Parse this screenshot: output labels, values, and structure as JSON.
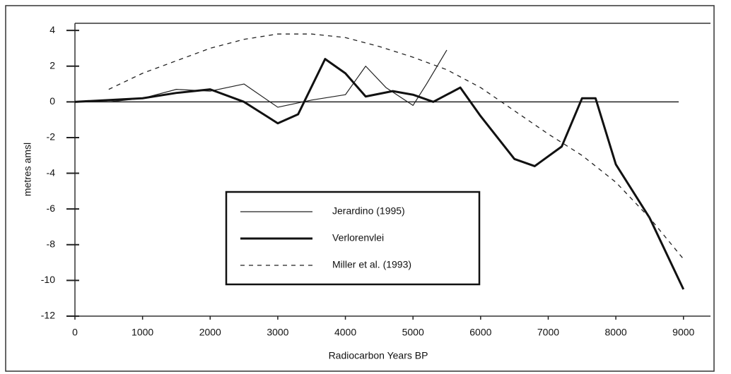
{
  "chart_data": {
    "type": "line",
    "x_label": "Radiocarbon Years BP",
    "y_label": "metres amsl",
    "xlim": [
      0,
      9400
    ],
    "xticks": [
      0,
      1000,
      2000,
      3000,
      4000,
      5000,
      6000,
      7000,
      8000,
      9000
    ],
    "ylim": [
      -12,
      4.4
    ],
    "yticks": [
      -12,
      -10,
      -8,
      -6,
      -4,
      -2,
      0,
      2,
      4
    ],
    "grid": false,
    "series": [
      {
        "name": "Jerardino (1995)",
        "color": "#222222",
        "style": "thin",
        "x": [
          500,
          1000,
          1500,
          2000,
          2500,
          3000,
          3500,
          4000,
          4300,
          4600,
          5000,
          5200,
          5500
        ],
        "values": [
          0,
          0.2,
          0.7,
          0.6,
          1.0,
          -0.3,
          0.1,
          0.4,
          2.0,
          0.8,
          -0.2,
          1.0,
          2.9
        ]
      },
      {
        "name": "Verlorenvlei",
        "color": "#111111",
        "style": "thick",
        "x": [
          0,
          1000,
          1500,
          2000,
          2500,
          3000,
          3300,
          3700,
          4000,
          4300,
          4700,
          5000,
          5300,
          5700,
          6000,
          6500,
          6800,
          7200,
          7500,
          7700,
          8000,
          8500,
          9000
        ],
        "values": [
          0,
          0.2,
          0.5,
          0.7,
          0.0,
          -1.2,
          -0.7,
          2.4,
          1.6,
          0.3,
          0.6,
          0.4,
          0.0,
          0.8,
          -0.8,
          -3.2,
          -3.6,
          -2.5,
          0.2,
          0.2,
          -3.5,
          -6.5,
          -10.5
        ]
      },
      {
        "name": "Miller et al. (1993)",
        "color": "#222222",
        "style": "dashed",
        "x": [
          500,
          1000,
          1500,
          2000,
          2500,
          3000,
          3500,
          4000,
          4500,
          5000,
          5500,
          6000,
          6500,
          7000,
          7500,
          8000,
          8500,
          9000
        ],
        "values": [
          0.7,
          1.6,
          2.3,
          3.0,
          3.5,
          3.8,
          3.8,
          3.6,
          3.1,
          2.5,
          1.8,
          0.8,
          -0.5,
          -1.8,
          -3.0,
          -4.5,
          -6.5,
          -8.8
        ]
      }
    ]
  }
}
